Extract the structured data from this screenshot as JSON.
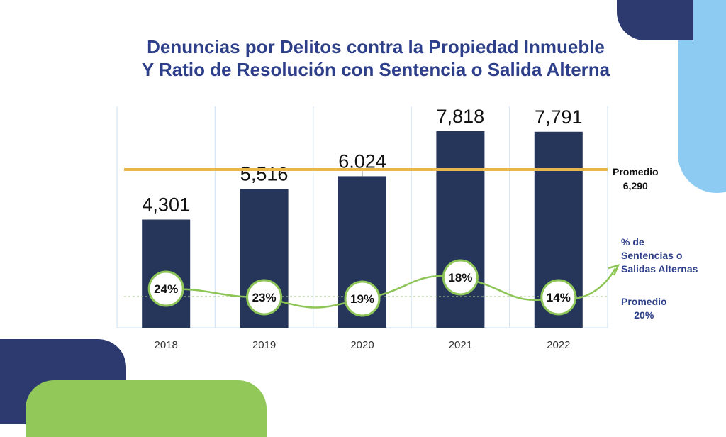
{
  "title_line1": "Denuncias por Delitos contra la Propiedad Inmueble",
  "title_line2": "Y Ratio de Resolución con Sentencia o Salida Alterna",
  "chart_data": {
    "type": "bar",
    "categories": [
      "2018",
      "2019",
      "2020",
      "2021",
      "2022"
    ],
    "series": [
      {
        "type": "bar",
        "values": [
          4301,
          5516,
          6024,
          7818,
          7791
        ],
        "labels": [
          "4,301",
          "5,516",
          "6,024",
          "7,818",
          "7,791"
        ],
        "color": "#26365a"
      },
      {
        "type": "line",
        "name_lines": [
          "% de",
          "Sentencias o",
          "Salidas Alternas"
        ],
        "values": [
          24,
          23,
          19,
          18,
          14
        ],
        "labels": [
          "24%",
          "23%",
          "19%",
          "18%",
          "14%"
        ],
        "color": "#8dc556"
      }
    ],
    "reference_lines": [
      {
        "label": "Promedio",
        "value_label": "6,290",
        "value": 6290,
        "color": "#e8b64c"
      },
      {
        "label": "Promedio",
        "value_label": "20%",
        "value": 20,
        "color": "#a6c88a"
      }
    ],
    "ylim": [
      0,
      8800
    ],
    "grid": "vertical",
    "legend": "right"
  }
}
